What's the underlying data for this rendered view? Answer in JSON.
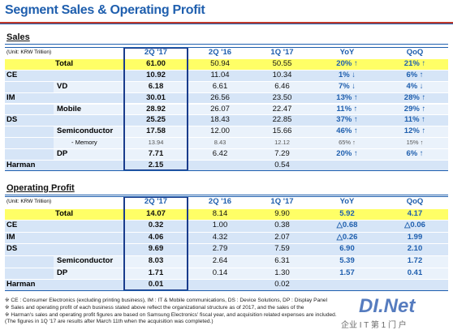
{
  "title": "Segment Sales & Operating Profit",
  "sections": [
    {
      "title": "Sales",
      "unit": "(Unit: KRW Trillion)",
      "columns": [
        "2Q '17",
        "2Q '16",
        "1Q '17",
        "YoY",
        "QoQ"
      ],
      "rows": [
        {
          "label": "Total",
          "values": [
            "61.00",
            "50.94",
            "50.55",
            "20% ↑",
            "21% ↑"
          ]
        },
        {
          "label": "CE",
          "values": [
            "10.92",
            "11.04",
            "10.34",
            "1% ↓",
            "6% ↑"
          ],
          "children": [
            {
              "label": "VD",
              "values": [
                "6.18",
                "6.61",
                "6.46",
                "7% ↓",
                "4% ↓"
              ]
            }
          ]
        },
        {
          "label": "IM",
          "values": [
            "30.01",
            "26.56",
            "23.50",
            "13% ↑",
            "28% ↑"
          ],
          "children": [
            {
              "label": "Mobile",
              "values": [
                "28.92",
                "26.07",
                "22.47",
                "11% ↑",
                "29% ↑"
              ]
            }
          ]
        },
        {
          "label": "DS",
          "values": [
            "25.25",
            "18.43",
            "22.85",
            "37% ↑",
            "11% ↑"
          ],
          "children": [
            {
              "label": "Semiconductor",
              "values": [
                "17.58",
                "12.00",
                "15.66",
                "46% ↑",
                "12% ↑"
              ],
              "children": [
                {
                  "label": "- Memory",
                  "values": [
                    "13.94",
                    "8.43",
                    "12.12",
                    "65% ↑",
                    "15% ↑"
                  ]
                }
              ]
            },
            {
              "label": "DP",
              "values": [
                "7.71",
                "6.42",
                "7.29",
                "20% ↑",
                "6% ↑"
              ]
            }
          ]
        },
        {
          "label": "Harman",
          "values": [
            "2.15",
            null,
            "0.54",
            null,
            null
          ]
        }
      ]
    },
    {
      "title": "Operating Profit",
      "unit": "(Unit: KRW Trillion)",
      "columns": [
        "2Q '17",
        "2Q '16",
        "1Q '17",
        "YoY",
        "QoQ"
      ],
      "rows": [
        {
          "label": "Total",
          "values": [
            "14.07",
            "8.14",
            "9.90",
            "5.92",
            "4.17"
          ]
        },
        {
          "label": "CE",
          "values": [
            "0.32",
            "1.00",
            "0.38",
            "△0.68",
            "△0.06"
          ]
        },
        {
          "label": "IM",
          "values": [
            "4.06",
            "4.32",
            "2.07",
            "△0.26",
            "1.99"
          ]
        },
        {
          "label": "DS",
          "values": [
            "9.69",
            "2.79",
            "7.59",
            "6.90",
            "2.10"
          ],
          "children": [
            {
              "label": "Semiconductor",
              "values": [
                "8.03",
                "2.64",
                "6.31",
                "5.39",
                "1.72"
              ]
            },
            {
              "label": "DP",
              "values": [
                "1.71",
                "0.14",
                "1.30",
                "1.57",
                "0.41"
              ]
            }
          ]
        },
        {
          "label": "Harman",
          "values": [
            "0.01",
            null,
            "0.02",
            null,
            null
          ]
        }
      ]
    }
  ],
  "notes": [
    "※ CE : Consumer Electronics (excluding printing business),  IM : IT & Mobile communications,  DS : Device Solutions,  DP : Display Panel",
    "※ Sales and operating profit of each business stated above reflect the organizational structure as of 2017, and the sales of the",
    "※ Harman's sales and operating profit figures are based on Samsung Electronics' fiscal year, and acquisition related expenses are included.",
    "(The figures in 1Q '17 are results after March 11th when the acquisition was completed.)"
  ],
  "watermark": {
    "brand": "DI.Net",
    "tagline": "企业 I T 第 1 门 户"
  }
}
